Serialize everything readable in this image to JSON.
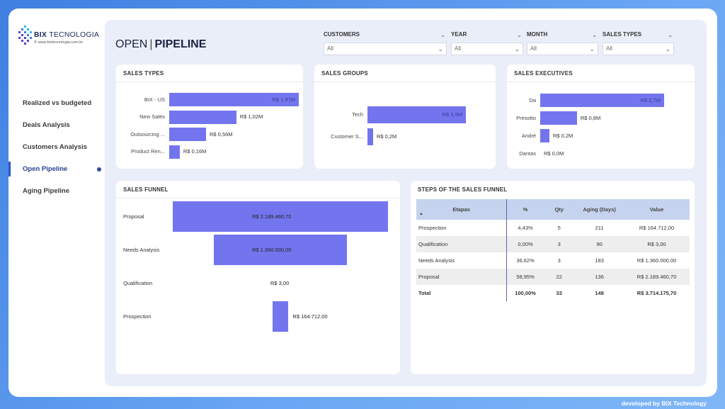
{
  "brand": {
    "name_bold": "BIX",
    "name_light": "TECNOLOGIA",
    "url": "© www.bixtecnologia.com.br"
  },
  "nav": {
    "items": [
      {
        "label": "Realized vs budgeted"
      },
      {
        "label": "Deals Analysis"
      },
      {
        "label": "Customers Analysis"
      },
      {
        "label": "Open Pipeline",
        "active": true
      },
      {
        "label": "Aging Pipeline"
      }
    ]
  },
  "page": {
    "title_light": "OPEN",
    "separator": "|",
    "title_bold": "PIPELINE"
  },
  "filters": [
    {
      "label": "CUSTOMERS",
      "value": "All"
    },
    {
      "label": "YEAR",
      "value": "All"
    },
    {
      "label": "MONTH",
      "value": "All"
    },
    {
      "label": "SALES TYPES",
      "value": "All"
    }
  ],
  "sales_types": {
    "title": "SALES TYPES",
    "bars": [
      {
        "label": "BIX - US",
        "value": 1.97,
        "text": "R$ 1,97M"
      },
      {
        "label": "New Sales",
        "value": 1.02,
        "text": "R$ 1,02M"
      },
      {
        "label": "Outsourcing ...",
        "value": 0.56,
        "text": "R$ 0,56M"
      },
      {
        "label": "Product Ren...",
        "value": 0.16,
        "text": "R$ 0,16M"
      }
    ],
    "max": 1.97
  },
  "sales_groups": {
    "title": "SALES GROUPS",
    "bars": [
      {
        "label": "Tech",
        "value": 3.5,
        "text": "R$ 3,5M"
      },
      {
        "label": "Customer S...",
        "value": 0.2,
        "text": "R$ 0,2M"
      }
    ],
    "max": 3.5
  },
  "sales_executives": {
    "title": "SALES EXECUTIVES",
    "bars": [
      {
        "label": "Da",
        "value": 2.7,
        "text": "R$ 2,7M"
      },
      {
        "label": "Presotto",
        "value": 0.8,
        "text": "R$ 0,8M"
      },
      {
        "label": "André",
        "value": 0.2,
        "text": "R$ 0,2M"
      },
      {
        "label": "Dantas",
        "value": 0.0,
        "text": "R$ 0,0M"
      }
    ],
    "max": 2.7
  },
  "sales_funnel": {
    "title": "SALES FUNNEL",
    "stages": [
      {
        "label": "Proposal",
        "value": 2189460.7,
        "text": "R$ 2.189.460,70"
      },
      {
        "label": "Needs Analysis",
        "value": 1360000.0,
        "text": "R$ 1.360.000,00"
      },
      {
        "label": "Qualification",
        "value": 3.0,
        "text": "R$ 3,00"
      },
      {
        "label": "Prospection",
        "value": 164712.0,
        "text": "R$ 164.712,00"
      }
    ]
  },
  "steps_table": {
    "title": "STEPS OF THE SALES FUNNEL",
    "columns": [
      "Etapas",
      "%",
      "Qty",
      "Aging (Days)",
      "Value"
    ],
    "rows": [
      [
        "Prospection",
        "4,43%",
        "5",
        "211",
        "R$ 164.712,00"
      ],
      [
        "Qualification",
        "0,00%",
        "3",
        "90",
        "R$ 3,00"
      ],
      [
        "Needs Analysis",
        "36,62%",
        "3",
        "183",
        "R$ 1.360.000,00"
      ],
      [
        "Proposal",
        "58,95%",
        "22",
        "136",
        "R$ 2.189.460,70"
      ]
    ],
    "total": [
      "Total",
      "100,00%",
      "33",
      "148",
      "R$ 3.714.175,70"
    ]
  },
  "footer": {
    "text": "developed by BIX Technology"
  },
  "colors": {
    "bar": "#7375ee",
    "accent": "#2d57c8",
    "header_row": "#c6d3ee"
  }
}
